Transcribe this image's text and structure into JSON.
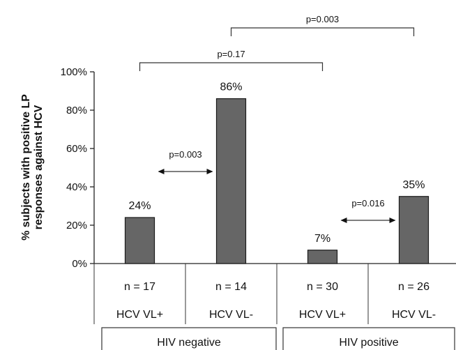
{
  "chart_data": {
    "type": "bar",
    "ylabel": "% subjects with positive LP responses against HCV",
    "ylim": [
      0,
      100
    ],
    "yticks": [
      "0%",
      "20%",
      "40%",
      "60%",
      "80%",
      "100%"
    ],
    "categories": [
      "HCV VL+",
      "HCV VL-",
      "HCV VL+",
      "HCV VL-"
    ],
    "values": [
      24,
      86,
      7,
      35
    ],
    "value_labels": [
      "24%",
      "86%",
      "7%",
      "35%"
    ],
    "counts": [
      "n = 17",
      "n = 14",
      "n = 30",
      "n = 26"
    ],
    "groups": [
      "HIV negative",
      "HIV positive"
    ],
    "bar_color": "#666666",
    "grid": false,
    "comparisons": [
      {
        "label": "p=0.003",
        "from": 0,
        "to": 1,
        "style": "arrow"
      },
      {
        "label": "p=0.016",
        "from": 2,
        "to": 3,
        "style": "arrow"
      },
      {
        "label": "p=0.17",
        "from": 0,
        "to": 2,
        "style": "bracket"
      },
      {
        "label": "p=0.003",
        "from": 1,
        "to": 3,
        "style": "bracket"
      }
    ]
  }
}
